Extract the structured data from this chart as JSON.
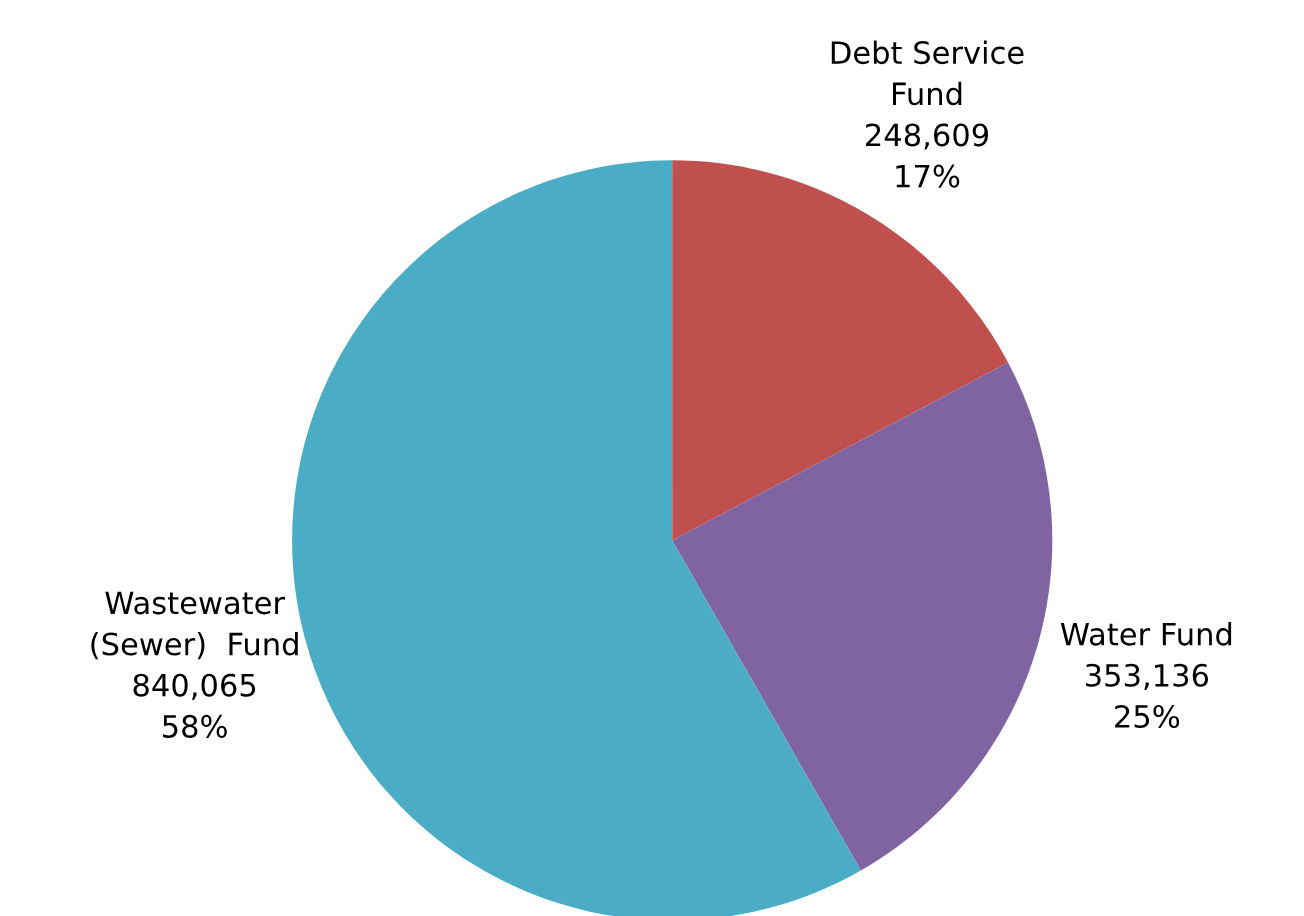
{
  "chart_data": {
    "type": "pie",
    "categories": [
      "Debt Service\nFund",
      "Water Fund",
      "Wastewater\n(Sewer)  Fund"
    ],
    "values": [
      248609,
      353136,
      840065
    ],
    "value_labels": [
      "248,609\n17%",
      "353,136\n25%",
      "840,065\n58%"
    ],
    "colors": [
      "#c0504d",
      "#8064a2",
      "#4bacc6"
    ],
    "legend": false
  }
}
